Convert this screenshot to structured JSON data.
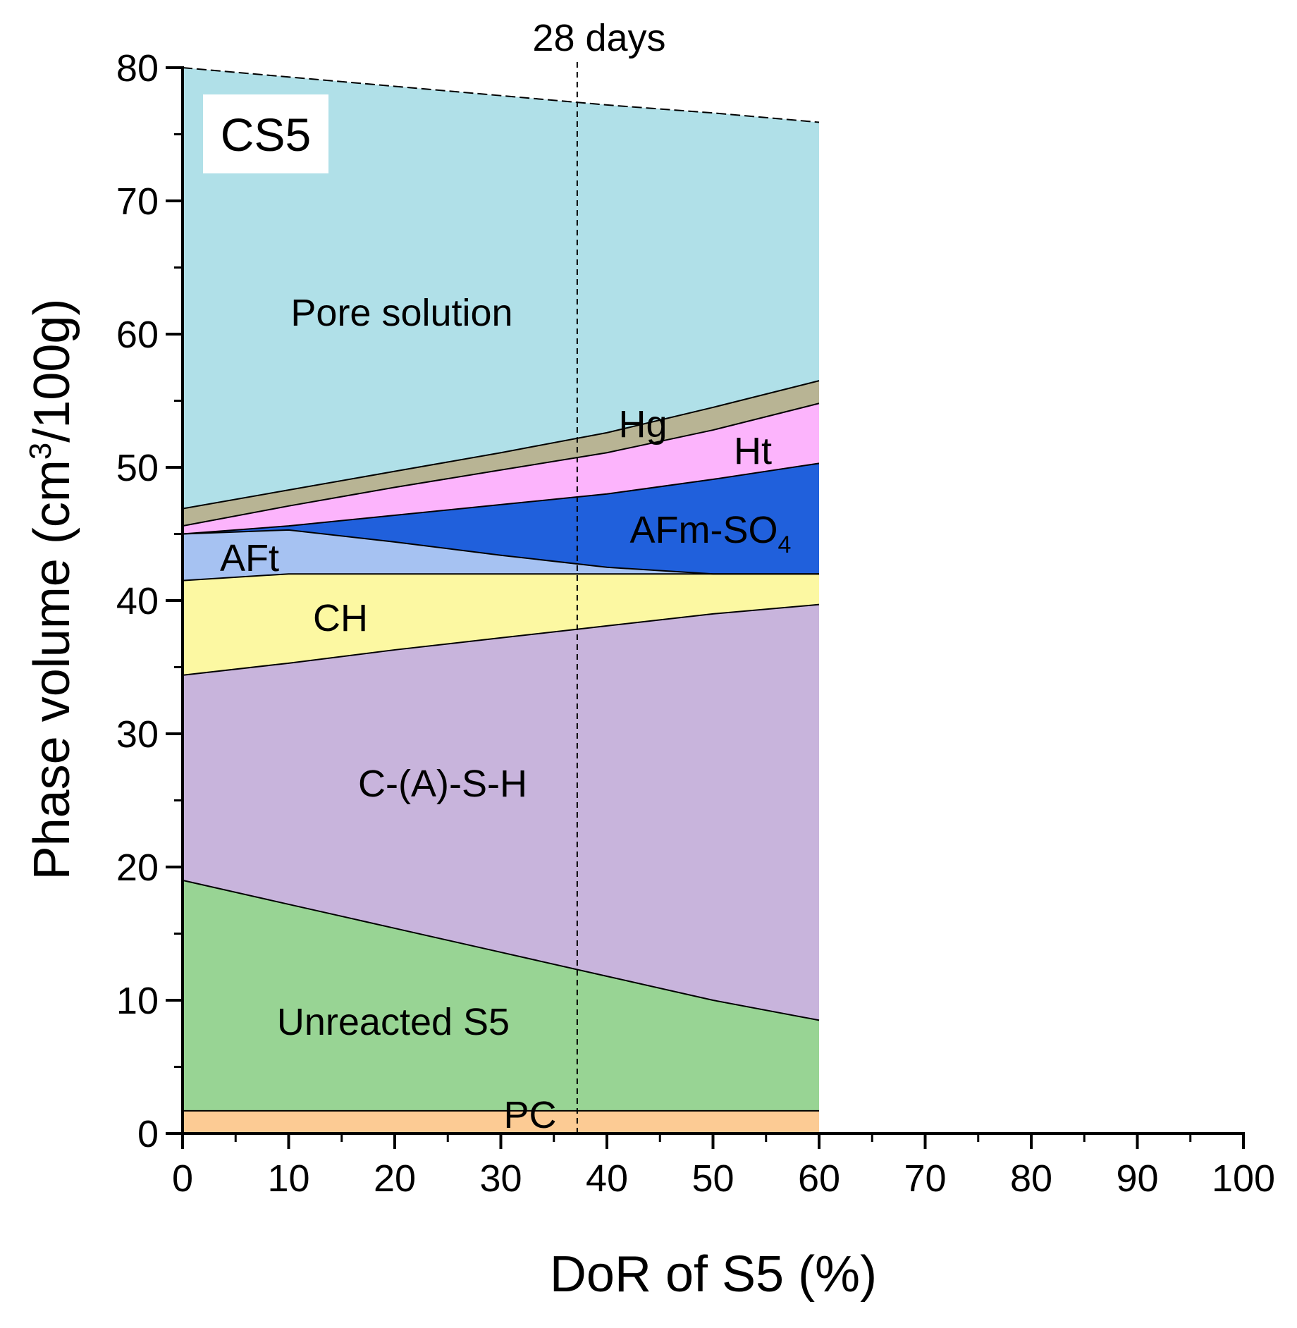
{
  "chart_data": {
    "type": "area",
    "panel_label": "CS5",
    "xlabel": "DoR of S5 (%)",
    "ylabel": {
      "prefix": "Phase volume (cm",
      "sup": "3",
      "suffix": "/100g)"
    },
    "xlim": [
      0,
      100
    ],
    "ylim": [
      0,
      80
    ],
    "xticks": [
      "0",
      "10",
      "20",
      "30",
      "40",
      "50",
      "60",
      "70",
      "80",
      "90",
      "100"
    ],
    "yticks": [
      "0",
      "10",
      "20",
      "30",
      "40",
      "50",
      "60",
      "70",
      "80"
    ],
    "annotation": {
      "text": "28 days",
      "x": 37.2
    },
    "x": [
      0,
      10,
      20,
      30,
      40,
      50,
      60
    ],
    "layers": [
      {
        "name": "PC",
        "label": "PC",
        "color": "#fccb94",
        "top": [
          1.7,
          1.7,
          1.7,
          1.7,
          1.7,
          1.7,
          1.7
        ]
      },
      {
        "name": "Unreacted S5",
        "label": "Unreacted S5",
        "color": "#98d494",
        "top": [
          19.0,
          17.2,
          15.4,
          13.6,
          11.8,
          10.0,
          8.5
        ]
      },
      {
        "name": "C-(A)-S-H",
        "label": "C-(A)-S-H",
        "color": "#c8b4dc",
        "top": [
          34.4,
          35.3,
          36.3,
          37.2,
          38.1,
          39.0,
          39.7
        ]
      },
      {
        "name": "CH",
        "label": "CH",
        "color": "#fcf8a2",
        "top": [
          41.5,
          42.0,
          42.0,
          42.0,
          42.0,
          42.0,
          42.0
        ]
      },
      {
        "name": "AFt",
        "label": "AFt",
        "color": "#a6c2f2",
        "top": [
          45.0,
          45.3,
          44.4,
          43.4,
          42.5,
          42.0,
          42.0
        ]
      },
      {
        "name": "AFm-SO4",
        "label": "AFm-SO",
        "label_sub": "4",
        "color": "#2060dc",
        "top": [
          45.0,
          45.6,
          46.4,
          47.2,
          48.0,
          49.1,
          50.3
        ]
      },
      {
        "name": "Ht",
        "label": "Ht",
        "color": "#fcb4fc",
        "top": [
          45.6,
          47.1,
          48.5,
          49.8,
          51.1,
          52.8,
          54.8
        ]
      },
      {
        "name": "Hg",
        "label": "Hg",
        "color": "#b8b494",
        "top": [
          46.9,
          48.3,
          49.7,
          51.1,
          52.6,
          54.5,
          56.5
        ]
      },
      {
        "name": "Pore solution",
        "label": "Pore solution",
        "color": "#b0e0e8",
        "top": [
          80.0,
          79.3,
          78.6,
          77.9,
          77.2,
          76.6,
          75.9
        ]
      }
    ]
  }
}
